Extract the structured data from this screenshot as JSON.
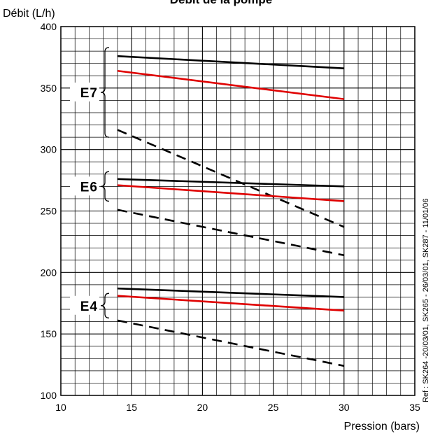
{
  "chart_data": {
    "type": "line",
    "title": "Débit  de la pompe",
    "ylabel": "Débit  (L/h)",
    "xlabel": "Pression  (bars)",
    "xlim": [
      10,
      35
    ],
    "ylim": [
      100,
      400
    ],
    "x_ticks": [
      10,
      15,
      20,
      25,
      30,
      35
    ],
    "y_ticks": [
      100,
      150,
      200,
      250,
      300,
      350,
      400
    ],
    "grid": true,
    "reference": "Ref : SK264 -20/03/01, SK265 - 26/03/01, SK287 - 11/01/06",
    "groups": [
      {
        "label": "E7",
        "y_span": [
          310,
          383
        ],
        "series": [
          {
            "color": "#000000",
            "style": "solid",
            "x": [
              14,
              30
            ],
            "y": [
              376,
              366
            ]
          },
          {
            "color": "#e00000",
            "style": "solid",
            "x": [
              14,
              30
            ],
            "y": [
              364,
              341
            ]
          },
          {
            "color": "#000000",
            "style": "dashed",
            "x": [
              14,
              30
            ],
            "y": [
              316,
              237
            ]
          }
        ]
      },
      {
        "label": "E6",
        "y_span": [
          258,
          282
        ],
        "series": [
          {
            "color": "#000000",
            "style": "solid",
            "x": [
              14,
              30
            ],
            "y": [
              276,
              270
            ]
          },
          {
            "color": "#e00000",
            "style": "solid",
            "x": [
              14,
              30
            ],
            "y": [
              271,
              258
            ]
          },
          {
            "color": "#000000",
            "style": "dashed",
            "x": [
              14,
              30
            ],
            "y": [
              251,
              214
            ]
          }
        ]
      },
      {
        "label": "E4",
        "y_span": [
          163,
          183
        ],
        "series": [
          {
            "color": "#000000",
            "style": "solid",
            "x": [
              14,
              30
            ],
            "y": [
              187,
              180
            ]
          },
          {
            "color": "#e00000",
            "style": "solid",
            "x": [
              14,
              30
            ],
            "y": [
              181,
              169
            ]
          },
          {
            "color": "#000000",
            "style": "dashed",
            "x": [
              14,
              30
            ],
            "y": [
              161,
              124
            ]
          }
        ]
      }
    ]
  }
}
